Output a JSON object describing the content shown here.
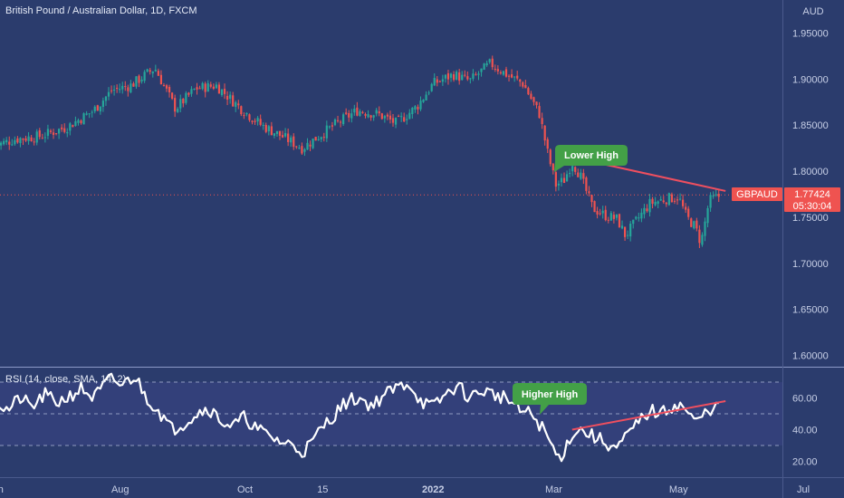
{
  "header": {
    "title": "British Pound / Australian Dollar, 1D, FXCM",
    "currency": "AUD"
  },
  "price_badge": {
    "symbol": "GBPAUD",
    "price": "1.77424",
    "countdown": "05:30:04"
  },
  "annotations": {
    "lower_high": "Lower High",
    "higher_high": "Higher High"
  },
  "rsi": {
    "label": "RSI (14, close, SMA, 14, 2)"
  },
  "colors": {
    "background": "#2b3c6d",
    "up_candle": "#26a69a",
    "down_candle": "#ef5350",
    "trendline": "#ef4f5f",
    "callout": "#43a047",
    "rsi_line": "#ffffff",
    "rsi_band": "#33407a"
  },
  "chart_data": [
    {
      "type": "candlestick",
      "title": "British Pound / Australian Dollar, 1D, FXCM",
      "ylabel": "AUD",
      "ylim": [
        1.585,
        1.955
      ],
      "y_ticks": [
        "1.95000",
        "1.90000",
        "1.85000",
        "1.80000",
        "1.75000",
        "1.70000",
        "1.65000",
        "1.60000"
      ],
      "x_ticks": [
        "Jun",
        "Aug",
        "Oct",
        "15",
        "2022",
        "Mar",
        "May",
        "Jul"
      ],
      "x_tick_days": [
        0,
        61,
        122,
        160,
        214,
        273,
        334,
        395
      ],
      "last_day": 355,
      "current_price": 1.77424,
      "close_path": [
        [
          0,
          1.828
        ],
        [
          10,
          1.835
        ],
        [
          22,
          1.838
        ],
        [
          35,
          1.848
        ],
        [
          48,
          1.866
        ],
        [
          57,
          1.888
        ],
        [
          66,
          1.893
        ],
        [
          78,
          1.912
        ],
        [
          88,
          1.868
        ],
        [
          98,
          1.89
        ],
        [
          108,
          1.893
        ],
        [
          120,
          1.868
        ],
        [
          130,
          1.85
        ],
        [
          140,
          1.838
        ],
        [
          150,
          1.825
        ],
        [
          158,
          1.838
        ],
        [
          167,
          1.852
        ],
        [
          177,
          1.866
        ],
        [
          187,
          1.862
        ],
        [
          196,
          1.852
        ],
        [
          206,
          1.87
        ],
        [
          214,
          1.895
        ],
        [
          224,
          1.905
        ],
        [
          232,
          1.898
        ],
        [
          242,
          1.917
        ],
        [
          250,
          1.905
        ],
        [
          258,
          1.895
        ],
        [
          266,
          1.862
        ],
        [
          270,
          1.82
        ],
        [
          274,
          1.785
        ],
        [
          278,
          1.79
        ],
        [
          282,
          1.81
        ],
        [
          286,
          1.795
        ],
        [
          292,
          1.76
        ],
        [
          298,
          1.752
        ],
        [
          304,
          1.748
        ],
        [
          308,
          1.73
        ],
        [
          314,
          1.748
        ],
        [
          320,
          1.765
        ],
        [
          328,
          1.77
        ],
        [
          334,
          1.772
        ],
        [
          338,
          1.75
        ],
        [
          342,
          1.74
        ],
        [
          345,
          1.722
        ],
        [
          349,
          1.768
        ],
        [
          355,
          1.774
        ]
      ],
      "lower_high_trendline": [
        [
          277,
          1.8175
        ],
        [
          357,
          1.7785
        ]
      ]
    },
    {
      "type": "line",
      "name": "RSI (14, close, SMA, 14, 2)",
      "ylim": [
        12,
        80
      ],
      "y_ticks": [
        "60.00",
        "40.00",
        "20.00"
      ],
      "band": [
        30,
        70
      ],
      "midline": 50,
      "path": [
        [
          0,
          58
        ],
        [
          6,
          52
        ],
        [
          12,
          60
        ],
        [
          18,
          54
        ],
        [
          24,
          62
        ],
        [
          30,
          57
        ],
        [
          36,
          61
        ],
        [
          42,
          66
        ],
        [
          48,
          60
        ],
        [
          56,
          72
        ],
        [
          62,
          68
        ],
        [
          68,
          74
        ],
        [
          74,
          60
        ],
        [
          80,
          52
        ],
        [
          86,
          40
        ],
        [
          92,
          44
        ],
        [
          98,
          50
        ],
        [
          104,
          54
        ],
        [
          110,
          46
        ],
        [
          116,
          42
        ],
        [
          122,
          48
        ],
        [
          128,
          40
        ],
        [
          134,
          36
        ],
        [
          140,
          32
        ],
        [
          146,
          30
        ],
        [
          150,
          26
        ],
        [
          155,
          32
        ],
        [
          160,
          42
        ],
        [
          166,
          50
        ],
        [
          172,
          58
        ],
        [
          178,
          60
        ],
        [
          184,
          55
        ],
        [
          190,
          62
        ],
        [
          196,
          66
        ],
        [
          202,
          70
        ],
        [
          208,
          58
        ],
        [
          214,
          54
        ],
        [
          220,
          62
        ],
        [
          226,
          68
        ],
        [
          232,
          60
        ],
        [
          238,
          65
        ],
        [
          244,
          62
        ],
        [
          250,
          60
        ],
        [
          256,
          52
        ],
        [
          262,
          50
        ],
        [
          268,
          40
        ],
        [
          272,
          30
        ],
        [
          275,
          22
        ],
        [
          278,
          26
        ],
        [
          282,
          38
        ],
        [
          286,
          40
        ],
        [
          292,
          36
        ],
        [
          298,
          32
        ],
        [
          304,
          28
        ],
        [
          309,
          36
        ],
        [
          314,
          44
        ],
        [
          320,
          52
        ],
        [
          326,
          50
        ],
        [
          332,
          56
        ],
        [
          337,
          54
        ],
        [
          342,
          44
        ],
        [
          347,
          50
        ],
        [
          351,
          55
        ],
        [
          355,
          53
        ]
      ],
      "higher_high_trendline": [
        [
          282,
          40
        ],
        [
          357,
          58
        ]
      ]
    }
  ]
}
